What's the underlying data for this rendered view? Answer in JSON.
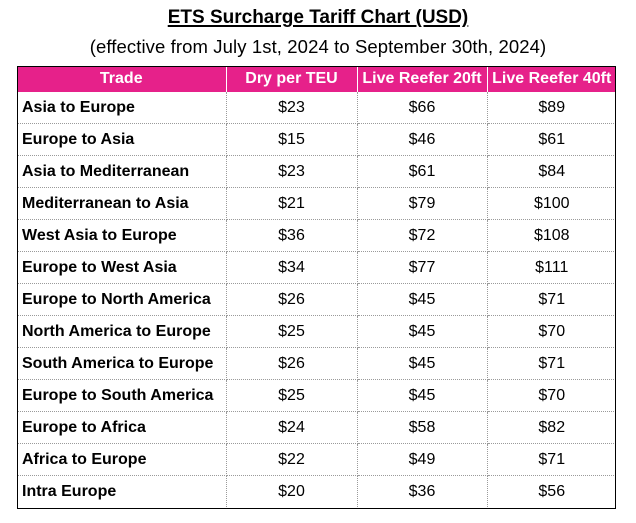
{
  "title": "ETS Surcharge Tariff Chart (USD)",
  "subtitle": "(effective from July 1st, 2024 to September 30th, 2024)",
  "colors": {
    "header_background": "#e6218a",
    "header_text": "#ffffff"
  },
  "table": {
    "headers": [
      "Trade",
      "Dry per TEU",
      "Live Reefer 20ft",
      "Live Reefer 40ft"
    ],
    "rows": [
      [
        "Asia to Europe",
        "$23",
        "$66",
        "$89"
      ],
      [
        "Europe to Asia",
        "$15",
        "$46",
        "$61"
      ],
      [
        "Asia to Mediterranean",
        "$23",
        "$61",
        "$84"
      ],
      [
        "Mediterranean to Asia",
        "$21",
        "$79",
        "$100"
      ],
      [
        "West Asia to Europe",
        "$36",
        "$72",
        "$108"
      ],
      [
        "Europe to West Asia",
        "$34",
        "$77",
        "$111"
      ],
      [
        "Europe to North America",
        "$26",
        "$45",
        "$71"
      ],
      [
        "North America to Europe",
        "$25",
        "$45",
        "$70"
      ],
      [
        "South America to Europe",
        "$26",
        "$45",
        "$71"
      ],
      [
        "Europe to South America",
        "$25",
        "$45",
        "$70"
      ],
      [
        "Europe to Africa",
        "$24",
        "$58",
        "$82"
      ],
      [
        "Africa to Europe",
        "$22",
        "$49",
        "$71"
      ],
      [
        "Intra Europe",
        "$20",
        "$36",
        "$56"
      ]
    ]
  }
}
